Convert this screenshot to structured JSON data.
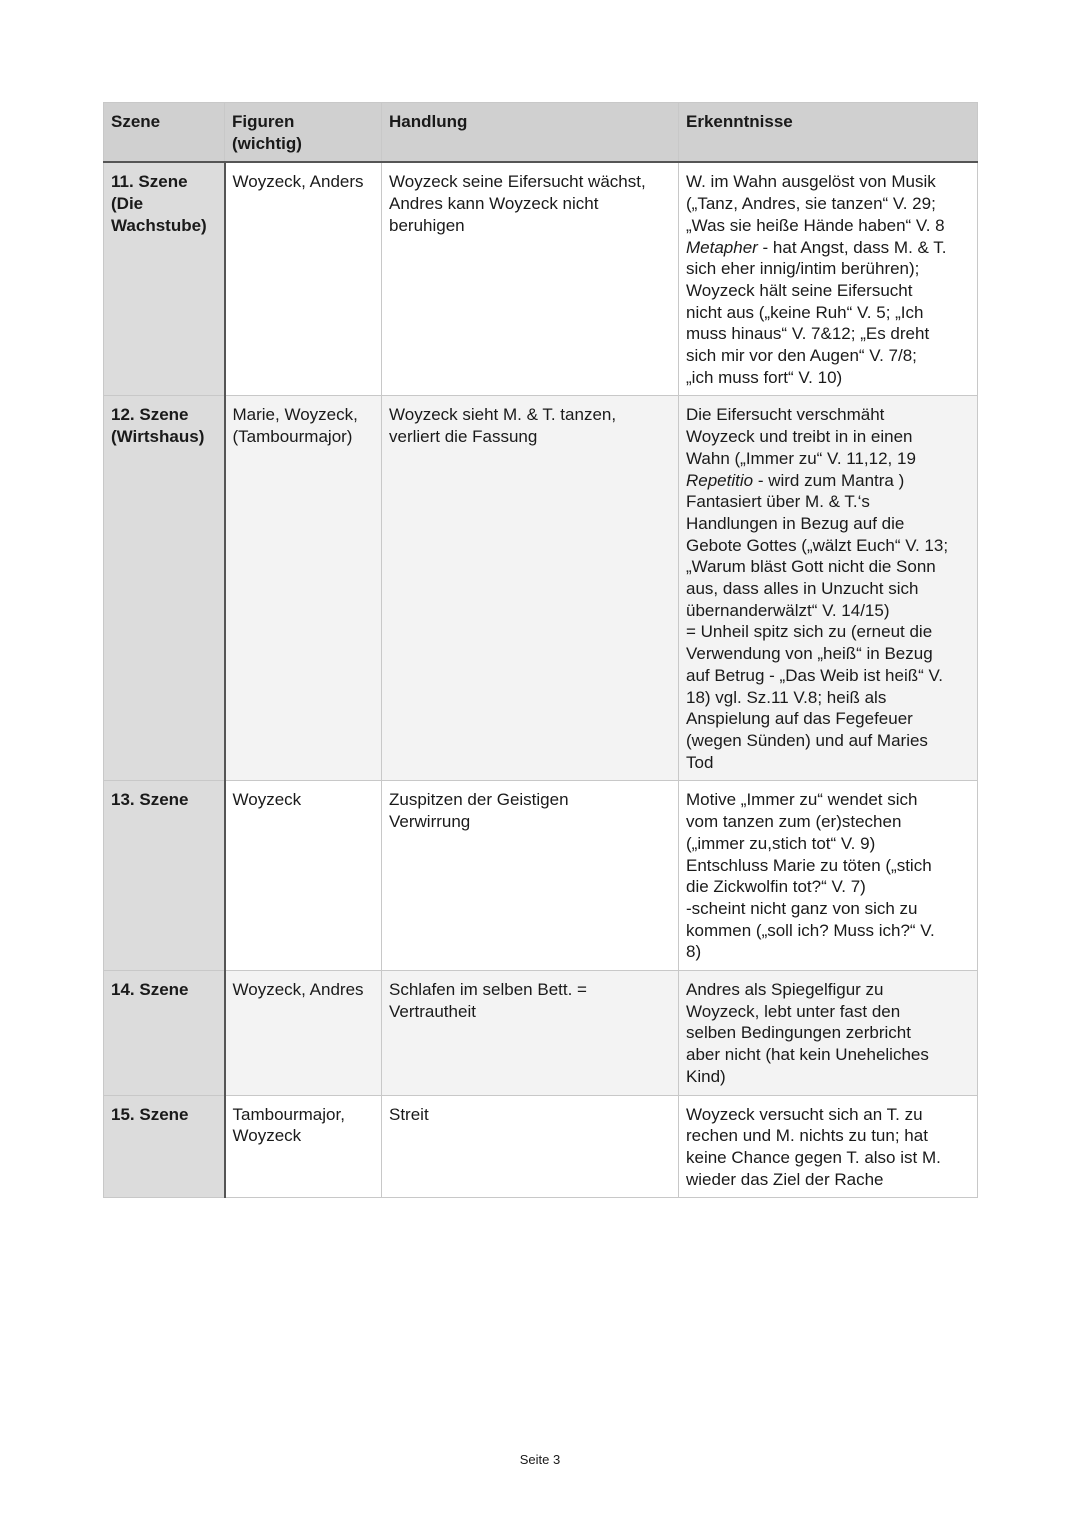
{
  "table": {
    "headers": [
      "Szene",
      "Figuren\n(wichtig)",
      "Handlung",
      "Erkenntnisse"
    ],
    "rows": [
      [
        "11. Szene\n(Die\nWachstube)",
        "Woyzeck, Anders",
        "Woyzeck seine Eifersucht wächst,\nAndres kann Woyzeck nicht\nberuhigen",
        [
          "W. im Wahn ausgelöst von Musik\n(„Tanz, Andres, sie tanzen“ V. 29;\n„Was sie heiße Hände haben“ V. 8\n",
          "Metapher",
          " - hat Angst, dass M. & T.\nsich eher innig/intim berühren);\nWoyzeck hält seine Eifersucht\nnicht aus („keine Ruh“ V. 5; „Ich\nmuss hinaus“ V. 7&12; „Es dreht\nsich mir vor den Augen“ V. 7/8;\n„ich muss fort“ V. 10)"
        ]
      ],
      [
        "12. Szene\n(Wirtshaus)",
        "Marie, Woyzeck,\n(Tambourmajor)",
        "Woyzeck sieht M. & T. tanzen,\nverliert die Fassung",
        [
          "Die Eifersucht verschmäht\nWoyzeck und treibt in in einen\nWahn („Immer zu“ V. 11,12, 19\n",
          "Repetitio",
          " - wird zum Mantra )\nFantasiert über M. & T.‘s\nHandlungen in Bezug auf die\nGebote Gottes („wälzt Euch“ V. 13;\n„Warum bläst Gott nicht die Sonn\naus, dass alles in Unzucht sich\nübernanderwälzt“ V. 14/15)\n= Unheil spitz sich zu (erneut die\nVerwendung von „heiß“ in Bezug\nauf Betrug - „Das Weib ist heiß“ V.\n18) vgl. Sz.11 V.8; heiß als\nAnspielung auf das Fegefeuer\n(wegen Sünden) und auf Maries\nTod"
        ]
      ],
      [
        "13. Szene",
        "Woyzeck",
        "Zuspitzen der Geistigen\nVerwirrung",
        "Motive „Immer zu“ wendet sich\nvom tanzen zum (er)stechen\n(„immer zu,stich tot“ V. 9)\nEntschluss Marie zu töten („stich\ndie Zickwolfin tot?“ V. 7)\n-scheint nicht ganz von sich zu\nkommen („soll ich? Muss ich?“ V.\n8)"
      ],
      [
        "14. Szene",
        "Woyzeck, Andres",
        "Schlafen im selben Bett. =\nVertrautheit",
        "Andres als Spiegelfigur zu\nWoyzeck, lebt unter fast den\nselben Bedingungen zerbricht\naber nicht (hat kein Uneheliches\nKind)"
      ],
      [
        "15. Szene",
        "Tambourmajor,\nWoyzeck",
        "Streit",
        "Woyzeck versucht sich an T. zu\nrechen und M. nichts zu tun; hat\nkeine Chance gegen T. also ist M.\nwieder das Ziel der Rache"
      ]
    ]
  },
  "footer": {
    "page": "Seite 3"
  }
}
